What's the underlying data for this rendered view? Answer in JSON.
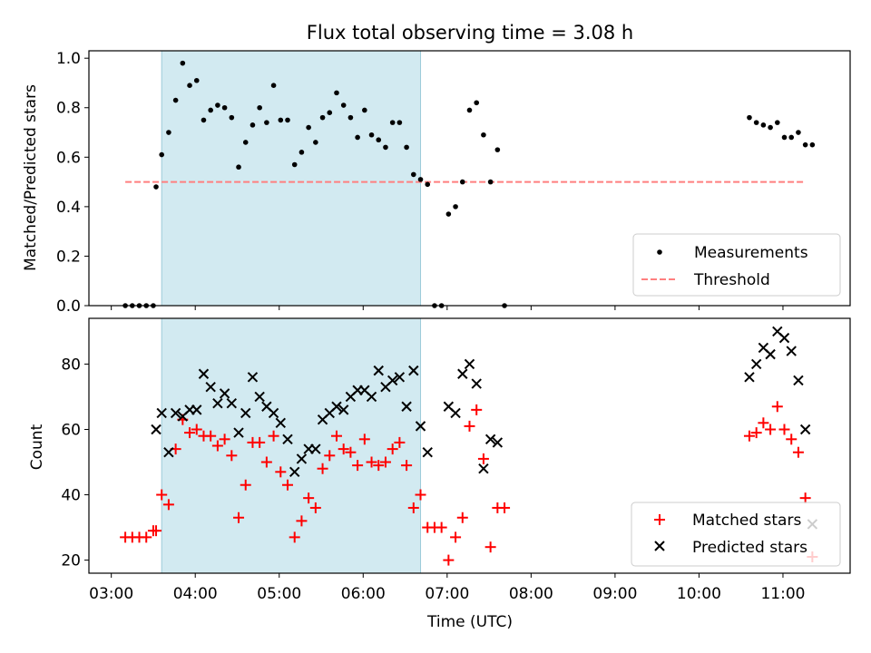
{
  "title": "Flux total observing time = 3.08 h",
  "xlabel": "Time (UTC)",
  "x_ticks": [
    "03:00",
    "04:00",
    "05:00",
    "06:00",
    "07:00",
    "08:00",
    "09:00",
    "10:00",
    "11:00"
  ],
  "colors": {
    "shade": "#add8e6",
    "measure": "#000000",
    "threshold": "#ff7f7f",
    "matched": "#ff0000",
    "predicted": "#000000"
  },
  "chart_data": [
    {
      "type": "scatter",
      "ylabel": "Matched/Predicted stars",
      "xlim": [
        "02:44",
        "11:48"
      ],
      "ylim": [
        0,
        1.03
      ],
      "y_ticks": [
        "0.0",
        "0.2",
        "0.4",
        "0.6",
        "0.8",
        "1.0"
      ],
      "shaded_span": [
        "03:36",
        "06:41"
      ],
      "legend": "lower right",
      "series": [
        {
          "name": "Measurements",
          "kind": "points",
          "x": [
            "03:10",
            "03:15",
            "03:20",
            "03:25",
            "03:30",
            "03:32",
            "03:36",
            "03:41",
            "03:46",
            "03:51",
            "03:56",
            "04:01",
            "04:06",
            "04:11",
            "04:16",
            "04:21",
            "04:26",
            "04:31",
            "04:36",
            "04:41",
            "04:46",
            "04:51",
            "04:56",
            "05:01",
            "05:06",
            "05:11",
            "05:16",
            "05:21",
            "05:26",
            "05:31",
            "05:36",
            "05:41",
            "05:46",
            "05:51",
            "05:56",
            "06:01",
            "06:06",
            "06:11",
            "06:16",
            "06:21",
            "06:26",
            "06:31",
            "06:36",
            "06:41",
            "06:46",
            "06:51",
            "06:56",
            "07:01",
            "07:06",
            "07:11",
            "07:16",
            "07:21",
            "07:26",
            "07:31",
            "07:36",
            "07:41"
          ],
          "y": [
            0.0,
            0.0,
            0.0,
            0.0,
            0.0,
            0.48,
            0.61,
            0.7,
            0.83,
            0.98,
            0.89,
            0.91,
            0.75,
            0.79,
            0.81,
            0.8,
            0.76,
            0.56,
            0.66,
            0.73,
            0.8,
            0.74,
            0.89,
            0.75,
            0.75,
            0.57,
            0.62,
            0.72,
            0.66,
            0.76,
            0.78,
            0.86,
            0.81,
            0.76,
            0.68,
            0.79,
            0.69,
            0.67,
            0.64,
            0.74,
            0.74,
            0.64,
            0.53,
            0.51,
            0.49,
            0.0,
            0.0,
            0.37,
            0.4,
            0.5,
            0.79,
            0.82,
            0.69,
            0.5,
            0.63,
            0.0
          ]
        },
        {
          "name": "Measurements",
          "kind": "points",
          "x": [
            "10:36",
            "10:41",
            "10:46",
            "10:51",
            "10:56",
            "11:01",
            "11:06",
            "11:11",
            "11:16",
            "11:21"
          ],
          "y": [
            0.76,
            0.74,
            0.73,
            0.72,
            0.74,
            0.68,
            0.68,
            0.7,
            0.65,
            0.65
          ]
        },
        {
          "name": "Threshold",
          "kind": "dashed-line",
          "x": [
            "03:10",
            "11:16"
          ],
          "y": [
            0.5,
            0.5
          ]
        }
      ]
    },
    {
      "type": "scatter",
      "ylabel": "Count",
      "xlim": [
        "02:44",
        "11:48"
      ],
      "ylim": [
        16,
        94
      ],
      "y_ticks": [
        "20",
        "40",
        "60",
        "80"
      ],
      "shaded_span": [
        "03:36",
        "06:41"
      ],
      "legend": "lower right",
      "series": [
        {
          "name": "Matched stars",
          "marker": "plus",
          "x": [
            "03:10",
            "03:15",
            "03:20",
            "03:25",
            "03:30",
            "03:32",
            "03:36",
            "03:41",
            "03:46",
            "03:51",
            "03:56",
            "04:01",
            "04:06",
            "04:11",
            "04:16",
            "04:21",
            "04:26",
            "04:31",
            "04:36",
            "04:41",
            "04:46",
            "04:51",
            "04:56",
            "05:01",
            "05:06",
            "05:11",
            "05:16",
            "05:21",
            "05:26",
            "05:31",
            "05:36",
            "05:41",
            "05:46",
            "05:51",
            "05:56",
            "06:01",
            "06:06",
            "06:11",
            "06:16",
            "06:21",
            "06:26",
            "06:31",
            "06:36",
            "06:41",
            "06:46",
            "06:51",
            "06:56",
            "07:01",
            "07:06",
            "07:11",
            "07:16",
            "07:21",
            "07:26",
            "07:31",
            "07:36",
            "07:41",
            "10:36",
            "10:41",
            "10:46",
            "10:51",
            "10:56",
            "11:01",
            "11:06",
            "11:11",
            "11:16",
            "11:21"
          ],
          "y": [
            27,
            27,
            27,
            27,
            29,
            29,
            40,
            37,
            54,
            63,
            59,
            60,
            58,
            58,
            55,
            57,
            52,
            33,
            43,
            56,
            56,
            50,
            58,
            47,
            43,
            27,
            32,
            39,
            36,
            48,
            52,
            58,
            54,
            53,
            49,
            57,
            50,
            49,
            50,
            54,
            56,
            49,
            36,
            40,
            30,
            30,
            30,
            20,
            27,
            33,
            61,
            66,
            51,
            24,
            36,
            36,
            58,
            59,
            62,
            60,
            67,
            60,
            57,
            53,
            39,
            21
          ]
        },
        {
          "name": "Predicted stars",
          "marker": "x",
          "x": [
            "03:32",
            "03:36",
            "03:41",
            "03:46",
            "03:51",
            "03:56",
            "04:01",
            "04:06",
            "04:11",
            "04:16",
            "04:21",
            "04:26",
            "04:31",
            "04:36",
            "04:41",
            "04:46",
            "04:51",
            "04:56",
            "05:01",
            "05:06",
            "05:11",
            "05:16",
            "05:21",
            "05:26",
            "05:31",
            "05:36",
            "05:41",
            "05:46",
            "05:51",
            "05:56",
            "06:01",
            "06:06",
            "06:11",
            "06:16",
            "06:21",
            "06:26",
            "06:31",
            "06:36",
            "06:41",
            "06:46",
            "07:01",
            "07:06",
            "07:11",
            "07:16",
            "07:21",
            "07:26",
            "07:31",
            "07:36",
            "10:36",
            "10:41",
            "10:46",
            "10:51",
            "10:56",
            "11:01",
            "11:06",
            "11:11",
            "11:16",
            "11:21"
          ],
          "y": [
            60,
            65,
            53,
            65,
            64,
            66,
            66,
            77,
            73,
            68,
            71,
            68,
            59,
            65,
            76,
            70,
            67,
            65,
            62,
            57,
            47,
            51,
            54,
            54,
            63,
            65,
            67,
            66,
            70,
            72,
            72,
            70,
            78,
            73,
            75,
            76,
            67,
            78,
            61,
            53,
            67,
            65,
            77,
            80,
            74,
            48,
            57,
            56,
            76,
            80,
            85,
            83,
            90,
            88,
            84,
            75,
            60,
            31
          ]
        }
      ]
    }
  ]
}
